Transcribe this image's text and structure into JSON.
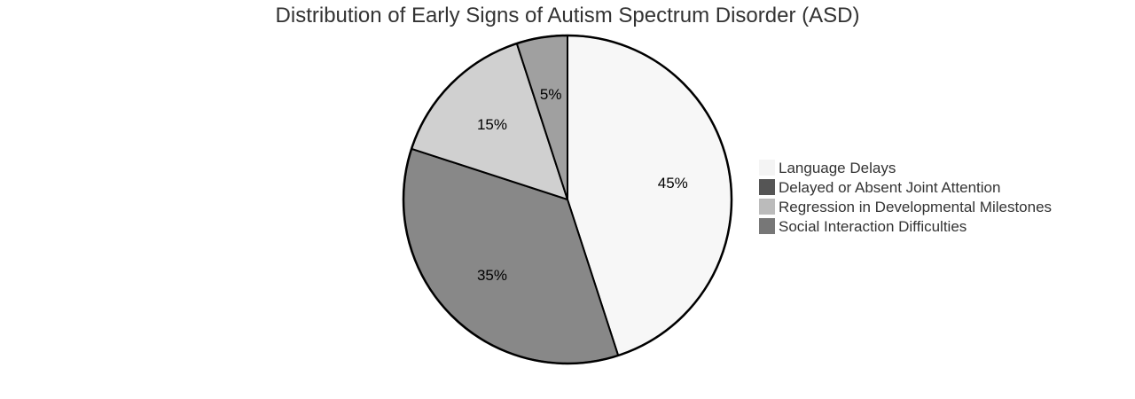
{
  "chart_data": {
    "type": "pie",
    "title": "Distribution of Early Signs of Autism Spectrum Disorder (ASD)",
    "slices": [
      {
        "label": "Language Delays",
        "value": 45,
        "display": "45%",
        "color": "#f7f7f7"
      },
      {
        "label": "Social Interaction Difficulties",
        "value": 35,
        "display": "35%",
        "color": "#888888"
      },
      {
        "label": "Regression in Developmental Milestones",
        "value": 15,
        "display": "15%",
        "color": "#d0d0d0"
      },
      {
        "label": "Delayed or Absent Joint Attention",
        "value": 5,
        "display": "5%",
        "color": "#a0a0a0"
      }
    ],
    "legend": {
      "position": "right",
      "entries": [
        {
          "label": "Language Delays",
          "color": "#f4f4f4"
        },
        {
          "label": "Delayed or Absent Joint Attention",
          "color": "#555555"
        },
        {
          "label": "Regression in Developmental Milestones",
          "color": "#bbbbbb"
        },
        {
          "label": "Social Interaction Difficulties",
          "color": "#777777"
        }
      ]
    },
    "slice_stroke": "#000000"
  }
}
